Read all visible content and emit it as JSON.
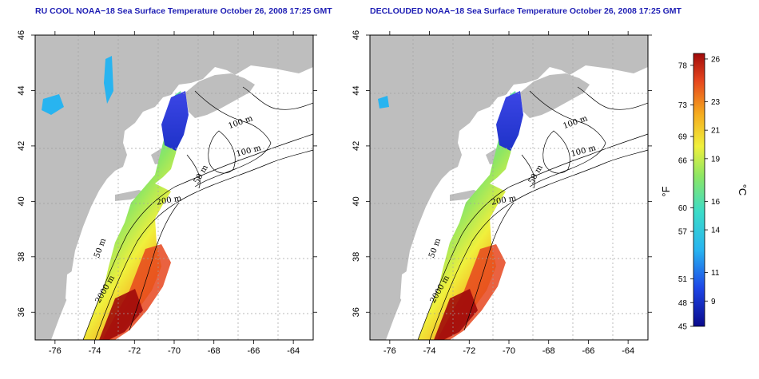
{
  "maps": [
    {
      "title": "RU COOL NOAA−18 Sea Surface Temperature October 26, 2008 17:25 GMT",
      "contour_labels": [
        "100 m",
        "100 m",
        "50 m",
        "200 m",
        "50 m",
        "2000 m"
      ]
    },
    {
      "title": "DECLOUDED NOAA−18 Sea Surface Temperature October 26, 2008 17:25 GMT",
      "contour_labels": [
        "100 m",
        "100 m",
        "50 m",
        "200 m",
        "50 m",
        "2000 m"
      ]
    }
  ],
  "axes": {
    "x_ticks": [
      "-76",
      "-74",
      "-72",
      "-70",
      "-68",
      "-66",
      "-64"
    ],
    "y_ticks": [
      "36",
      "38",
      "40",
      "42",
      "44",
      "46"
    ],
    "lon_range": [
      -77,
      -63
    ],
    "lat_range": [
      35,
      46
    ]
  },
  "colorbar": {
    "fahrenheit_label": "°F",
    "celsius_label": "°C",
    "fahrenheit_ticks": [
      "78",
      "73",
      "69",
      "66",
      "60",
      "57",
      "51",
      "48",
      "45"
    ],
    "celsius_ticks": [
      "26",
      "23",
      "21",
      "19",
      "16",
      "14",
      "11",
      "9"
    ],
    "colors": [
      "#0a0a8c",
      "#1e46e6",
      "#28b4f0",
      "#3cdcc8",
      "#8ce664",
      "#f0f03c",
      "#f5aa1e",
      "#e6461e",
      "#a00a0a"
    ]
  },
  "legend_colors": {
    "land": "#bebebe",
    "ocean_nodata": "#ffffff"
  }
}
